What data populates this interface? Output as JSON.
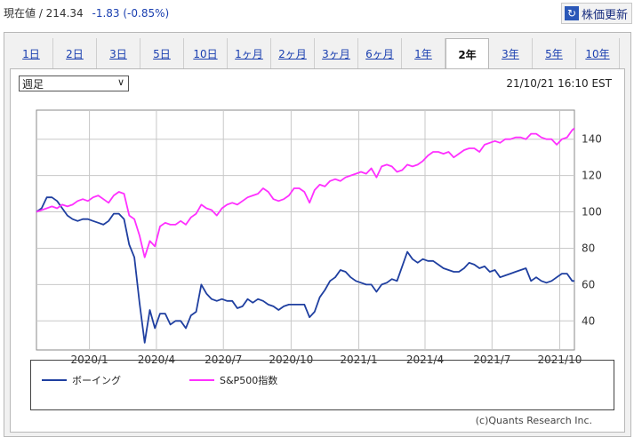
{
  "header": {
    "price_label": "現在値 / 214.34",
    "change": "-1.83 (-0.85%)",
    "refresh_label": "株価更新"
  },
  "tabs": [
    {
      "label": "1日"
    },
    {
      "label": "2日"
    },
    {
      "label": "3日"
    },
    {
      "label": "5日"
    },
    {
      "label": "10日"
    },
    {
      "label": "1ヶ月"
    },
    {
      "label": "2ヶ月"
    },
    {
      "label": "3ヶ月"
    },
    {
      "label": "6ヶ月"
    },
    {
      "label": "1年"
    },
    {
      "label": "2年",
      "active": true
    },
    {
      "label": "3年"
    },
    {
      "label": "5年"
    },
    {
      "label": "10年"
    }
  ],
  "controls": {
    "period_select": "週足",
    "timestamp": "21/10/21 16:10 EST"
  },
  "credit": "(c)Quants Research Inc.",
  "colors": {
    "boeing": "#1f3fa0",
    "sp500": "#ff30ff",
    "active_tab_text": "#111111",
    "link": "#1a3fb0"
  },
  "chart_data": {
    "type": "line",
    "title": "",
    "xlabel": "",
    "ylabel": "",
    "ylim": [
      24,
      156
    ],
    "y_ticks": [
      40,
      60,
      80,
      100,
      120,
      140
    ],
    "x_range": [
      "2019-10-21",
      "2021-10-21"
    ],
    "x_ticks": [
      {
        "label": "2020/1",
        "date": "2020-01-01"
      },
      {
        "label": "2020/4",
        "date": "2020-04-01"
      },
      {
        "label": "2020/7",
        "date": "2020-07-01"
      },
      {
        "label": "2020/10",
        "date": "2020-10-01"
      },
      {
        "label": "2021/1",
        "date": "2021-01-01"
      },
      {
        "label": "2021/4",
        "date": "2021-04-01"
      },
      {
        "label": "2021/7",
        "date": "2021-07-01"
      },
      {
        "label": "2021/10",
        "date": "2021-10-01"
      }
    ],
    "grid": true,
    "series": [
      {
        "name": "ボーイング",
        "color": "#1f3fa0",
        "points": [
          [
            "2019-10-21",
            100
          ],
          [
            "2019-10-28",
            102
          ],
          [
            "2019-11-04",
            108
          ],
          [
            "2019-11-11",
            108
          ],
          [
            "2019-11-18",
            106
          ],
          [
            "2019-11-25",
            102
          ],
          [
            "2019-12-02",
            98
          ],
          [
            "2019-12-09",
            96
          ],
          [
            "2019-12-16",
            95
          ],
          [
            "2019-12-23",
            96
          ],
          [
            "2019-12-30",
            96
          ],
          [
            "2020-01-06",
            95
          ],
          [
            "2020-01-13",
            94
          ],
          [
            "2020-01-20",
            93
          ],
          [
            "2020-01-27",
            95
          ],
          [
            "2020-02-03",
            99
          ],
          [
            "2020-02-10",
            99
          ],
          [
            "2020-02-17",
            96
          ],
          [
            "2020-02-24",
            82
          ],
          [
            "2020-03-02",
            75
          ],
          [
            "2020-03-09",
            50
          ],
          [
            "2020-03-16",
            28
          ],
          [
            "2020-03-23",
            46
          ],
          [
            "2020-03-30",
            36
          ],
          [
            "2020-04-06",
            44
          ],
          [
            "2020-04-13",
            44
          ],
          [
            "2020-04-20",
            38
          ],
          [
            "2020-04-27",
            40
          ],
          [
            "2020-05-04",
            40
          ],
          [
            "2020-05-11",
            36
          ],
          [
            "2020-05-18",
            43
          ],
          [
            "2020-05-25",
            45
          ],
          [
            "2020-06-01",
            60
          ],
          [
            "2020-06-08",
            55
          ],
          [
            "2020-06-15",
            52
          ],
          [
            "2020-06-22",
            51
          ],
          [
            "2020-06-29",
            52
          ],
          [
            "2020-07-06",
            51
          ],
          [
            "2020-07-13",
            51
          ],
          [
            "2020-07-20",
            47
          ],
          [
            "2020-07-27",
            48
          ],
          [
            "2020-08-03",
            52
          ],
          [
            "2020-08-10",
            50
          ],
          [
            "2020-08-17",
            52
          ],
          [
            "2020-08-24",
            51
          ],
          [
            "2020-08-31",
            49
          ],
          [
            "2020-09-07",
            48
          ],
          [
            "2020-09-14",
            46
          ],
          [
            "2020-09-21",
            48
          ],
          [
            "2020-09-28",
            49
          ],
          [
            "2020-10-05",
            49
          ],
          [
            "2020-10-12",
            49
          ],
          [
            "2020-10-19",
            49
          ],
          [
            "2020-10-26",
            42
          ],
          [
            "2020-11-02",
            45
          ],
          [
            "2020-11-09",
            53
          ],
          [
            "2020-11-16",
            57
          ],
          [
            "2020-11-23",
            62
          ],
          [
            "2020-11-30",
            64
          ],
          [
            "2020-12-07",
            68
          ],
          [
            "2020-12-14",
            67
          ],
          [
            "2020-12-21",
            64
          ],
          [
            "2020-12-28",
            62
          ],
          [
            "2021-01-04",
            61
          ],
          [
            "2021-01-11",
            60
          ],
          [
            "2021-01-18",
            60
          ],
          [
            "2021-01-25",
            56
          ],
          [
            "2021-02-01",
            60
          ],
          [
            "2021-02-08",
            61
          ],
          [
            "2021-02-15",
            63
          ],
          [
            "2021-02-22",
            62
          ],
          [
            "2021-03-01",
            70
          ],
          [
            "2021-03-08",
            78
          ],
          [
            "2021-03-15",
            74
          ],
          [
            "2021-03-22",
            72
          ],
          [
            "2021-03-29",
            74
          ],
          [
            "2021-04-05",
            73
          ],
          [
            "2021-04-12",
            73
          ],
          [
            "2021-04-19",
            71
          ],
          [
            "2021-04-26",
            69
          ],
          [
            "2021-05-03",
            68
          ],
          [
            "2021-05-10",
            67
          ],
          [
            "2021-05-17",
            67
          ],
          [
            "2021-05-24",
            69
          ],
          [
            "2021-05-31",
            72
          ],
          [
            "2021-06-07",
            71
          ],
          [
            "2021-06-14",
            69
          ],
          [
            "2021-06-21",
            70
          ],
          [
            "2021-06-28",
            67
          ],
          [
            "2021-07-05",
            68
          ],
          [
            "2021-07-12",
            64
          ],
          [
            "2021-07-19",
            65
          ],
          [
            "2021-07-26",
            66
          ],
          [
            "2021-08-02",
            67
          ],
          [
            "2021-08-09",
            68
          ],
          [
            "2021-08-16",
            69
          ],
          [
            "2021-08-23",
            62
          ],
          [
            "2021-08-30",
            64
          ],
          [
            "2021-09-06",
            62
          ],
          [
            "2021-09-13",
            61
          ],
          [
            "2021-09-20",
            62
          ],
          [
            "2021-09-27",
            64
          ],
          [
            "2021-10-04",
            66
          ],
          [
            "2021-10-11",
            66
          ],
          [
            "2021-10-18",
            62
          ],
          [
            "2021-10-21",
            62
          ]
        ]
      },
      {
        "name": "S&P500指数",
        "color": "#ff30ff",
        "points": [
          [
            "2019-10-21",
            100
          ],
          [
            "2019-10-28",
            101
          ],
          [
            "2019-11-04",
            102
          ],
          [
            "2019-11-11",
            103
          ],
          [
            "2019-11-18",
            102
          ],
          [
            "2019-11-25",
            104
          ],
          [
            "2019-12-02",
            103
          ],
          [
            "2019-12-09",
            104
          ],
          [
            "2019-12-16",
            106
          ],
          [
            "2019-12-23",
            107
          ],
          [
            "2019-12-30",
            106
          ],
          [
            "2020-01-06",
            108
          ],
          [
            "2020-01-13",
            109
          ],
          [
            "2020-01-20",
            107
          ],
          [
            "2020-01-27",
            105
          ],
          [
            "2020-02-03",
            109
          ],
          [
            "2020-02-10",
            111
          ],
          [
            "2020-02-17",
            110
          ],
          [
            "2020-02-24",
            98
          ],
          [
            "2020-03-02",
            96
          ],
          [
            "2020-03-09",
            87
          ],
          [
            "2020-03-16",
            75
          ],
          [
            "2020-03-23",
            84
          ],
          [
            "2020-03-30",
            81
          ],
          [
            "2020-04-06",
            92
          ],
          [
            "2020-04-13",
            94
          ],
          [
            "2020-04-20",
            93
          ],
          [
            "2020-04-27",
            93
          ],
          [
            "2020-05-04",
            95
          ],
          [
            "2020-05-11",
            93
          ],
          [
            "2020-05-18",
            97
          ],
          [
            "2020-05-25",
            99
          ],
          [
            "2020-06-01",
            104
          ],
          [
            "2020-06-08",
            102
          ],
          [
            "2020-06-15",
            101
          ],
          [
            "2020-06-22",
            98
          ],
          [
            "2020-06-29",
            102
          ],
          [
            "2020-07-06",
            104
          ],
          [
            "2020-07-13",
            105
          ],
          [
            "2020-07-20",
            104
          ],
          [
            "2020-07-27",
            106
          ],
          [
            "2020-08-03",
            108
          ],
          [
            "2020-08-10",
            109
          ],
          [
            "2020-08-17",
            110
          ],
          [
            "2020-08-24",
            113
          ],
          [
            "2020-08-31",
            111
          ],
          [
            "2020-09-07",
            107
          ],
          [
            "2020-09-14",
            106
          ],
          [
            "2020-09-21",
            107
          ],
          [
            "2020-09-28",
            109
          ],
          [
            "2020-10-05",
            113
          ],
          [
            "2020-10-12",
            113
          ],
          [
            "2020-10-19",
            111
          ],
          [
            "2020-10-26",
            105
          ],
          [
            "2020-11-02",
            112
          ],
          [
            "2020-11-09",
            115
          ],
          [
            "2020-11-16",
            114
          ],
          [
            "2020-11-23",
            117
          ],
          [
            "2020-11-30",
            118
          ],
          [
            "2020-12-07",
            117
          ],
          [
            "2020-12-14",
            119
          ],
          [
            "2020-12-21",
            120
          ],
          [
            "2020-12-28",
            121
          ],
          [
            "2021-01-04",
            122
          ],
          [
            "2021-01-11",
            121
          ],
          [
            "2021-01-18",
            124
          ],
          [
            "2021-01-25",
            119
          ],
          [
            "2021-02-01",
            125
          ],
          [
            "2021-02-08",
            126
          ],
          [
            "2021-02-15",
            125
          ],
          [
            "2021-02-22",
            122
          ],
          [
            "2021-03-01",
            123
          ],
          [
            "2021-03-08",
            126
          ],
          [
            "2021-03-15",
            125
          ],
          [
            "2021-03-22",
            126
          ],
          [
            "2021-03-29",
            128
          ],
          [
            "2021-04-05",
            131
          ],
          [
            "2021-04-12",
            133
          ],
          [
            "2021-04-19",
            133
          ],
          [
            "2021-04-26",
            132
          ],
          [
            "2021-05-03",
            133
          ],
          [
            "2021-05-10",
            130
          ],
          [
            "2021-05-17",
            132
          ],
          [
            "2021-05-24",
            134
          ],
          [
            "2021-05-31",
            135
          ],
          [
            "2021-06-07",
            135
          ],
          [
            "2021-06-14",
            133
          ],
          [
            "2021-06-21",
            137
          ],
          [
            "2021-06-28",
            138
          ],
          [
            "2021-07-05",
            139
          ],
          [
            "2021-07-12",
            138
          ],
          [
            "2021-07-19",
            140
          ],
          [
            "2021-07-26",
            140
          ],
          [
            "2021-08-02",
            141
          ],
          [
            "2021-08-09",
            141
          ],
          [
            "2021-08-16",
            140
          ],
          [
            "2021-08-23",
            143
          ],
          [
            "2021-08-30",
            143
          ],
          [
            "2021-09-06",
            141
          ],
          [
            "2021-09-13",
            140
          ],
          [
            "2021-09-20",
            140
          ],
          [
            "2021-09-27",
            137
          ],
          [
            "2021-10-04",
            140
          ],
          [
            "2021-10-11",
            141
          ],
          [
            "2021-10-18",
            145
          ],
          [
            "2021-10-21",
            146
          ]
        ]
      }
    ]
  }
}
